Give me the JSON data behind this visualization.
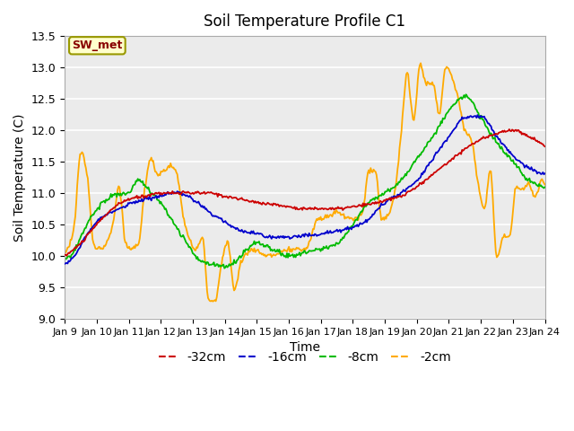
{
  "title": "Soil Temperature Profile C1",
  "xlabel": "Time",
  "ylabel": "Soil Temperature (C)",
  "ylim": [
    9.0,
    13.5
  ],
  "annotation": "SW_met",
  "legend_labels": [
    "-32cm",
    "-16cm",
    "-8cm",
    "-2cm"
  ],
  "line_colors": [
    "#cc0000",
    "#0000cc",
    "#00bb00",
    "#ffaa00"
  ],
  "x_tick_labels": [
    "Jan 9",
    "Jan 10",
    "Jan 11",
    "Jan 12",
    "Jan 13",
    "Jan 14",
    "Jan 15",
    "Jan 16",
    "Jan 17",
    "Jan 18",
    "Jan 19",
    "Jan 20",
    "Jan 21",
    "Jan 22",
    "Jan 23",
    "Jan 24"
  ],
  "ytick_values": [
    9.0,
    9.5,
    10.0,
    10.5,
    11.0,
    11.5,
    12.0,
    12.5,
    13.0,
    13.5
  ],
  "red_keypoints_x": [
    0,
    0.5,
    1.0,
    1.5,
    2.0,
    2.5,
    3.0,
    3.5,
    4.0,
    4.5,
    5.0,
    5.5,
    6.0,
    6.5,
    7.0,
    7.5,
    8.0,
    8.5,
    9.0,
    9.5,
    10.0,
    10.5,
    11.0,
    11.5,
    12.0,
    12.5,
    13.0,
    13.5,
    14.0,
    14.5,
    15.0
  ],
  "red_keypoints_y": [
    10.0,
    10.2,
    10.5,
    10.75,
    10.9,
    10.95,
    11.0,
    11.0,
    11.0,
    11.0,
    10.95,
    10.9,
    10.85,
    10.82,
    10.78,
    10.75,
    10.75,
    10.75,
    10.78,
    10.82,
    10.88,
    10.95,
    11.1,
    11.3,
    11.5,
    11.7,
    11.85,
    11.95,
    12.0,
    11.9,
    11.75
  ],
  "blue_keypoints_x": [
    0,
    0.3,
    0.7,
    1.0,
    1.5,
    2.0,
    2.5,
    3.0,
    3.5,
    4.0,
    4.5,
    5.0,
    5.5,
    6.0,
    6.5,
    7.0,
    7.5,
    8.0,
    8.5,
    9.0,
    9.5,
    10.0,
    10.5,
    11.0,
    11.5,
    12.0,
    12.5,
    13.0,
    13.5,
    14.0,
    14.5,
    15.0
  ],
  "blue_keypoints_y": [
    9.85,
    10.0,
    10.35,
    10.55,
    10.7,
    10.82,
    10.9,
    10.95,
    11.0,
    10.9,
    10.7,
    10.55,
    10.4,
    10.35,
    10.3,
    10.3,
    10.32,
    10.35,
    10.4,
    10.45,
    10.6,
    10.85,
    11.0,
    11.2,
    11.55,
    11.9,
    12.2,
    12.22,
    11.9,
    11.6,
    11.4,
    11.3
  ],
  "green_keypoints_x": [
    0,
    0.2,
    0.5,
    0.8,
    1.0,
    1.3,
    1.7,
    2.0,
    2.3,
    2.7,
    3.0,
    3.3,
    3.7,
    4.0,
    4.3,
    4.7,
    5.0,
    5.3,
    5.7,
    6.0,
    6.3,
    6.7,
    7.0,
    7.5,
    8.0,
    8.5,
    9.0,
    9.5,
    10.0,
    10.5,
    11.0,
    11.5,
    12.0,
    12.5,
    13.0,
    13.5,
    14.0,
    14.5,
    15.0
  ],
  "green_keypoints_y": [
    9.95,
    10.0,
    10.3,
    10.6,
    10.75,
    10.9,
    10.98,
    11.0,
    11.2,
    11.0,
    10.85,
    10.6,
    10.3,
    10.05,
    9.9,
    9.85,
    9.83,
    9.9,
    10.1,
    10.2,
    10.15,
    10.05,
    10.0,
    10.05,
    10.1,
    10.2,
    10.5,
    10.85,
    11.0,
    11.2,
    11.55,
    11.9,
    12.3,
    12.55,
    12.2,
    11.8,
    11.5,
    11.2,
    11.1
  ],
  "orange_keypoints_x": [
    0,
    0.1,
    0.3,
    0.5,
    0.7,
    0.9,
    1.1,
    1.3,
    1.5,
    1.7,
    1.9,
    2.1,
    2.3,
    2.5,
    2.7,
    2.9,
    3.1,
    3.3,
    3.5,
    3.7,
    3.9,
    4.1,
    4.3,
    4.5,
    4.7,
    4.9,
    5.1,
    5.3,
    5.5,
    5.7,
    5.9,
    6.1,
    6.3,
    6.5,
    6.7,
    6.9,
    7.1,
    7.3,
    7.5,
    7.7,
    7.9,
    8.1,
    8.3,
    8.5,
    8.7,
    8.9,
    9.1,
    9.3,
    9.5,
    9.7,
    9.9,
    10.1,
    10.3,
    10.5,
    10.7,
    10.9,
    11.1,
    11.3,
    11.5,
    11.7,
    11.9,
    12.1,
    12.3,
    12.5,
    12.7,
    12.9,
    13.1,
    13.3,
    13.5,
    13.7,
    13.9,
    14.1,
    14.3,
    14.5,
    14.7,
    14.9,
    15.0
  ],
  "orange_keypoints_y": [
    10.05,
    10.1,
    10.5,
    11.65,
    11.3,
    10.2,
    10.1,
    10.2,
    10.5,
    11.1,
    10.2,
    10.1,
    10.2,
    11.05,
    11.55,
    11.3,
    11.35,
    11.45,
    11.3,
    10.65,
    10.25,
    10.1,
    10.3,
    9.3,
    9.28,
    9.9,
    10.2,
    9.45,
    9.9,
    10.05,
    10.1,
    10.05,
    10.0,
    10.0,
    10.05,
    10.1,
    10.1,
    10.1,
    10.1,
    10.3,
    10.6,
    10.6,
    10.65,
    10.7,
    10.65,
    10.6,
    10.6,
    10.7,
    11.35,
    11.35,
    10.6,
    10.65,
    11.0,
    11.9,
    12.9,
    12.15,
    13.05,
    12.75,
    12.75,
    12.25,
    13.0,
    12.85,
    12.5,
    12.0,
    11.85,
    11.2,
    10.75,
    11.35,
    9.95,
    10.3,
    10.3,
    11.1,
    11.05,
    11.15,
    10.95,
    11.2,
    11.1
  ]
}
